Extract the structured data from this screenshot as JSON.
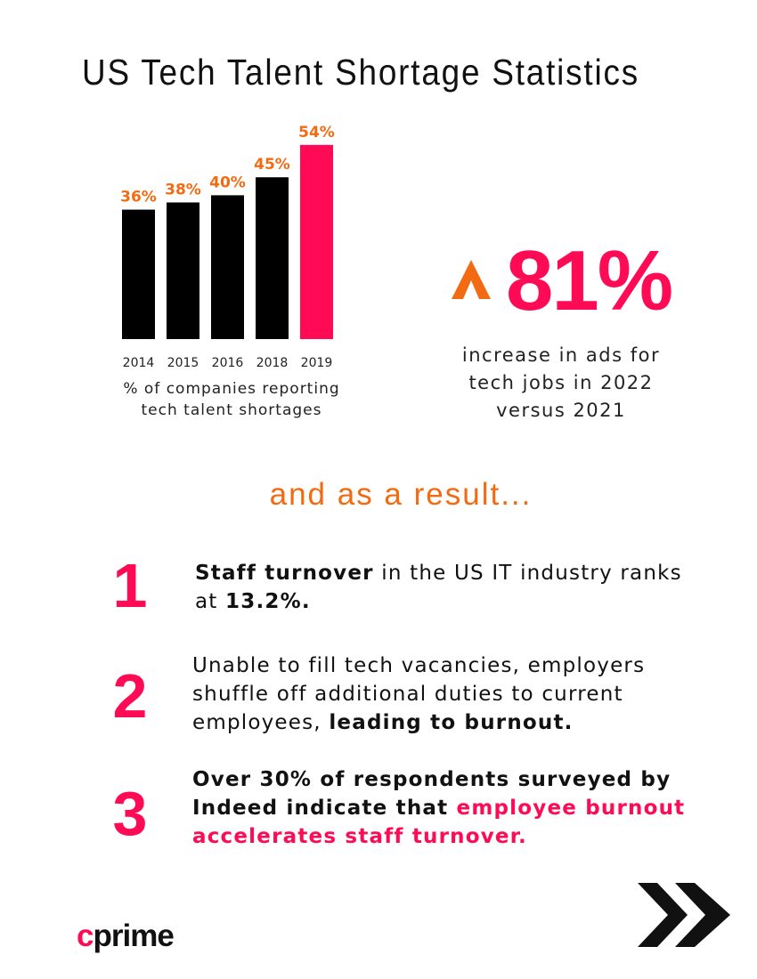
{
  "title": "US Tech Talent Shortage Statistics",
  "chart_data": {
    "type": "bar",
    "categories": [
      "2014",
      "2015",
      "2016",
      "2018",
      "2019"
    ],
    "values": [
      36,
      38,
      40,
      45,
      54
    ],
    "value_labels": [
      "36%",
      "38%",
      "40%",
      "45%",
      "54%"
    ],
    "highlight_index": 4,
    "caption_line1": "% of companies reporting",
    "caption_line2": "tech talent shortages",
    "ylim": [
      0,
      60
    ],
    "grid": false,
    "colors": {
      "bar": "#000000",
      "highlight": "#ff0a54",
      "label": "#f26a11"
    }
  },
  "stat": {
    "value": "81%",
    "desc_line1": "increase in ads for",
    "desc_line2": "tech jobs in 2022",
    "desc_line3": "versus 2021",
    "icon": "caret-up-icon"
  },
  "subhead": "and as a result...",
  "items": [
    {
      "number": "1",
      "bold1": "Staff turnover",
      "text1": " in the US IT industry ranks",
      "text2": "at ",
      "bold2": "13.2%."
    },
    {
      "number": "2",
      "line1": "Unable to fill tech vacancies, employers",
      "line2": "shuffle off additional duties to current",
      "line3": "employees, ",
      "bold": "leading to burnout."
    },
    {
      "number": "3",
      "bold1": "Over 30% of respondents surveyed by",
      "bold2": "Indeed indicate that ",
      "pink1": "employee burnout",
      "pink2": "accelerates staff turnover."
    }
  ],
  "logo": {
    "c": "c",
    "rest": "prime"
  },
  "icons": {
    "footer": "double-chevron-right-icon"
  },
  "colors": {
    "accent": "#ff0a54",
    "orange": "#f26a11",
    "text": "#111111"
  }
}
